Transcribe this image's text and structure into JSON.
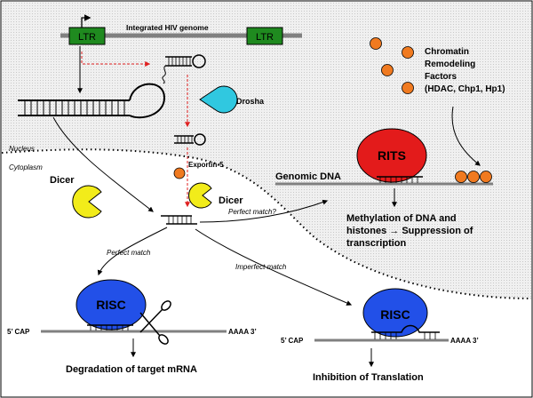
{
  "labels": {
    "ltr_left": "LTR",
    "ltr_right": "LTR",
    "integrated_genome": "Integrated HIV genome",
    "chromatin": [
      "Chromatin",
      "Remodeling",
      "Factors",
      "(HDAC, Chp1, Hp1)"
    ],
    "drosha": "Drosha",
    "nucleus": "Nucleus",
    "cytoplasm": "Cytoplasm",
    "exportin": "Exportin-5",
    "dicer_left": "Dicer",
    "dicer_right": "Dicer",
    "rits": "RITS",
    "genomic_dna": "Genomic DNA",
    "perfect_match_q": "Perfect match?",
    "methylation": [
      "Methylation of DNA and",
      "histones → Suppression of",
      "transcription"
    ],
    "perfect_match": "Perfect match",
    "imperfect_match": "Imperfect match",
    "risc_left": "RISC",
    "risc_right": "RISC",
    "cap_left": "5’ CAP",
    "cap_right": "5’ CAP",
    "polya_left": "AAAA 3’",
    "polya_right": "AAAA 3’",
    "degradation": "Degradation of target mRNA",
    "inhibition": "Inhibition of Translation"
  },
  "colors": {
    "ltr_fill": "#1f8a1f",
    "rits_fill": "#e31b1b",
    "risc_fill": "#2250e8",
    "drosha_fill": "#30c8e0",
    "dicer_fill": "#f2ec1a",
    "factor_fill": "#f07a20",
    "red_arrow": "#e02020",
    "nucleus_bg": "#ececec"
  }
}
